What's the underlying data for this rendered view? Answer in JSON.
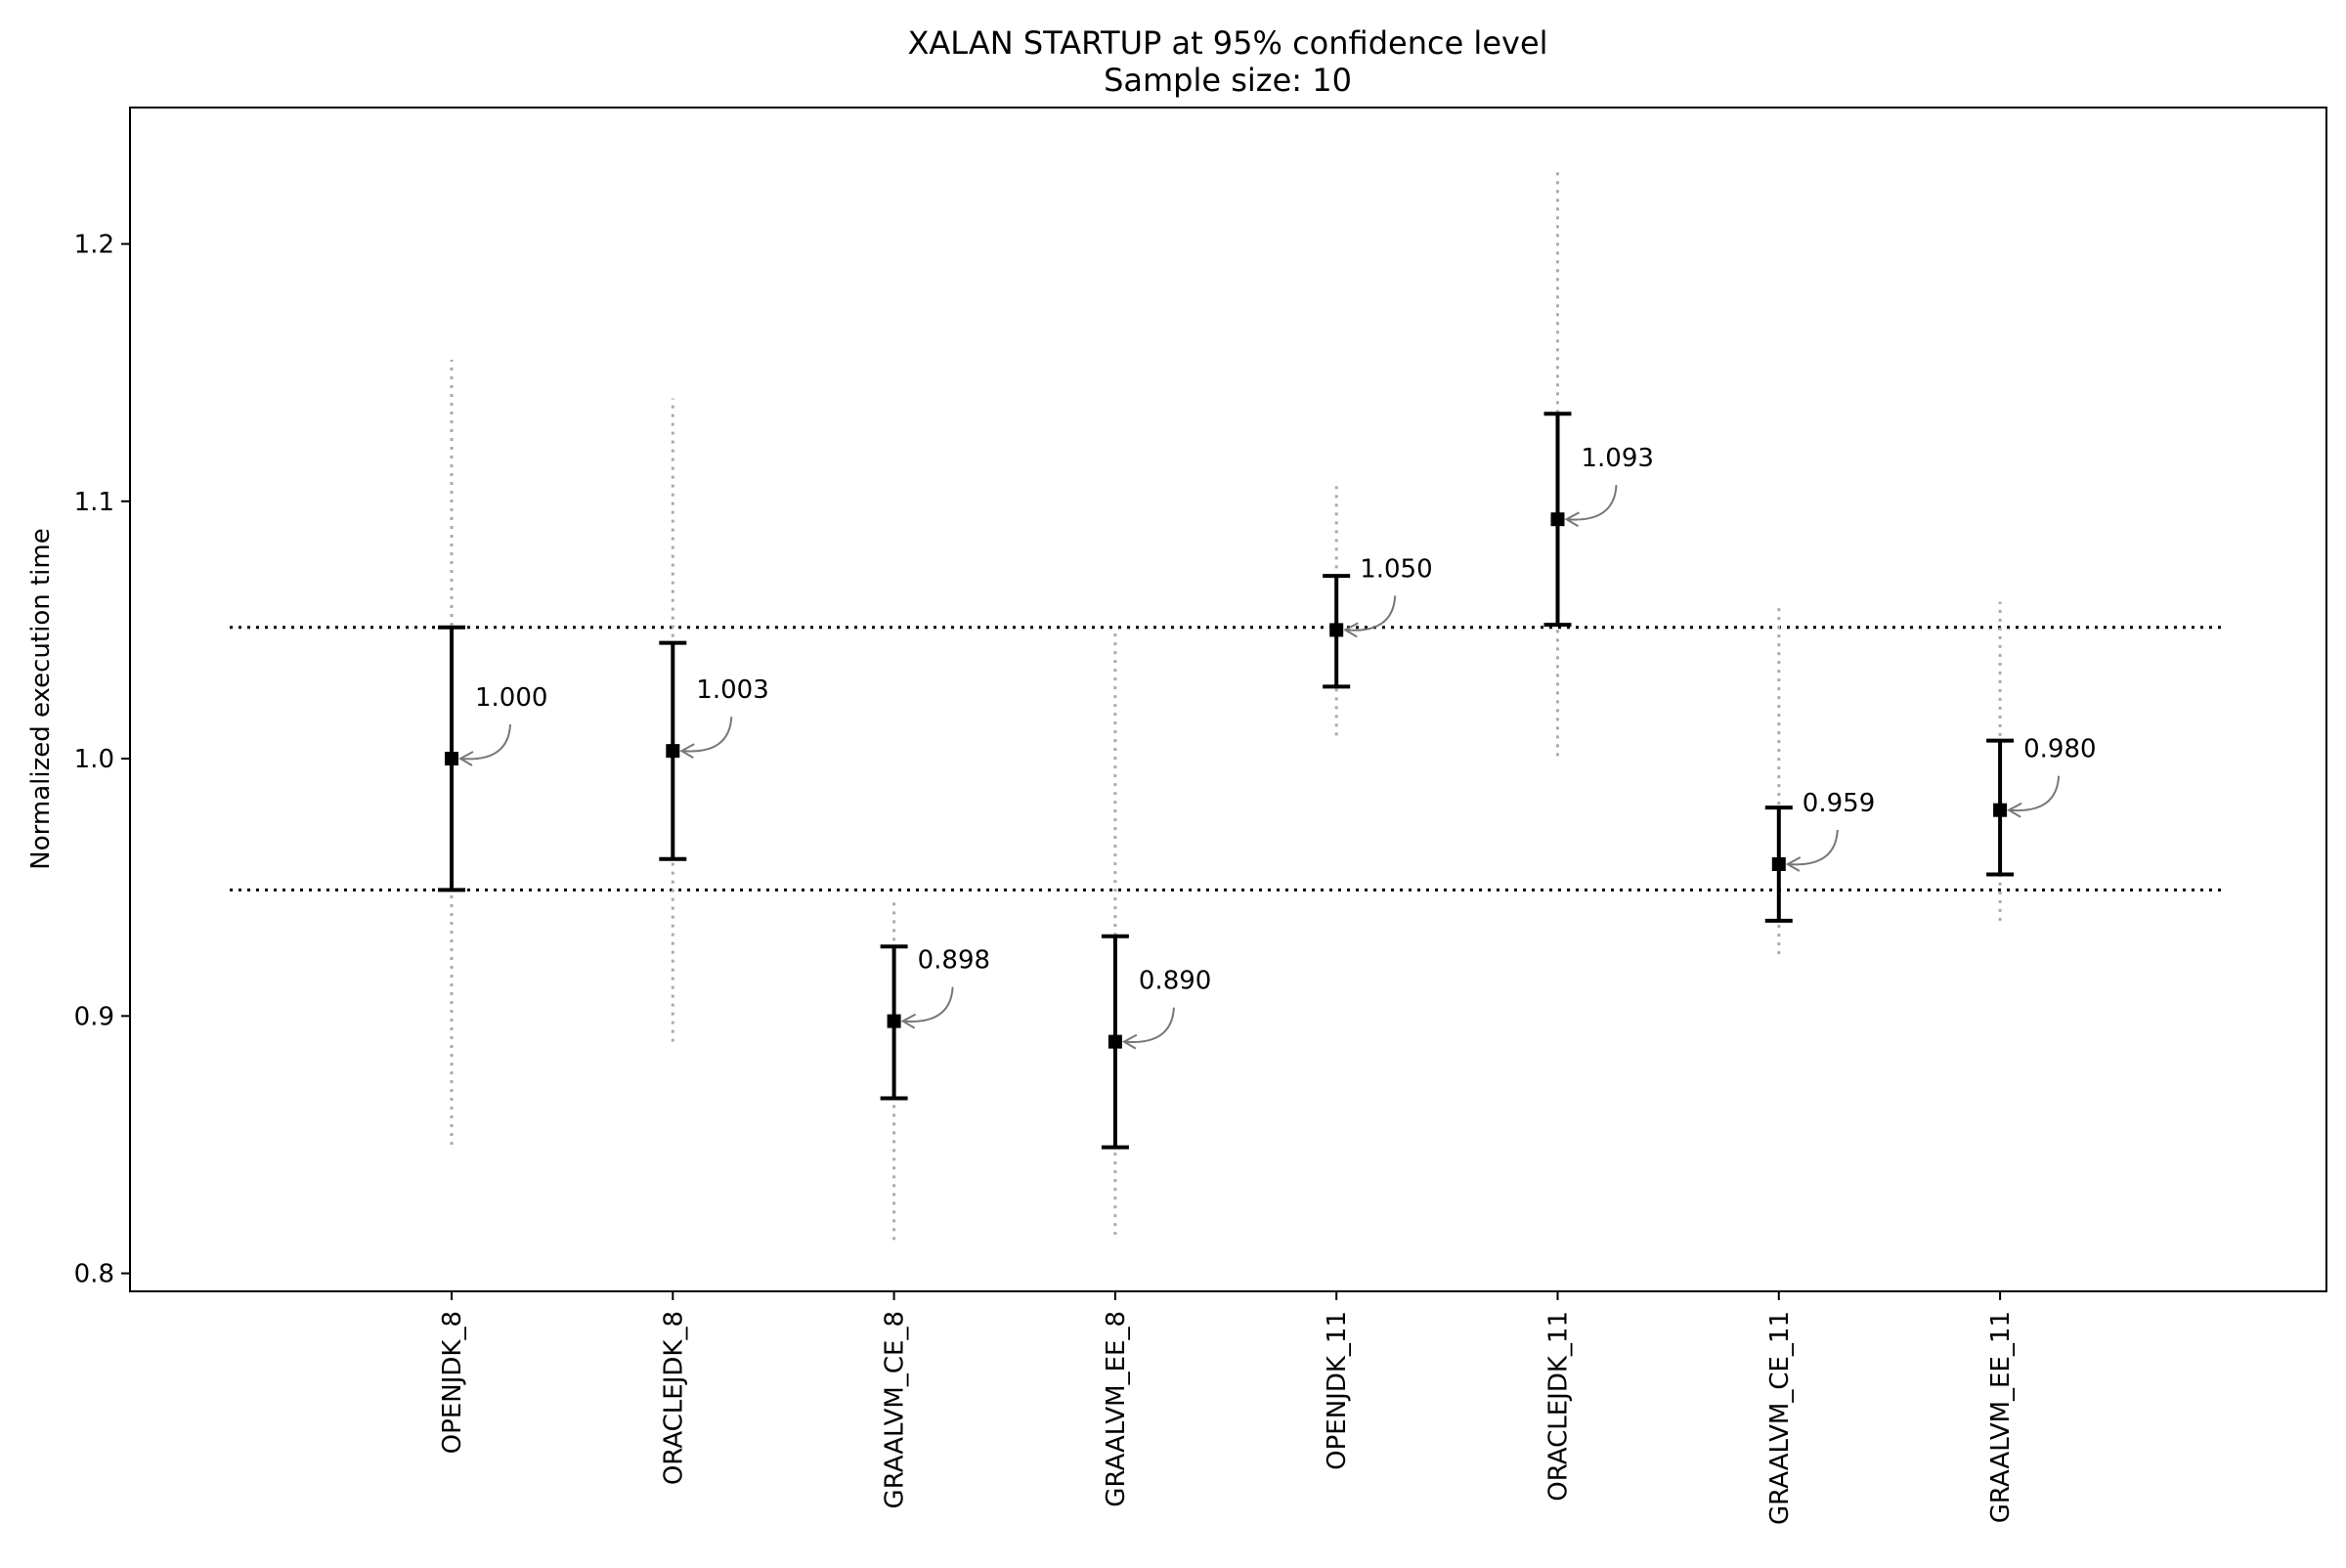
{
  "chart_data": {
    "type": "errorbar",
    "title": "XALAN STARTUP at 95% confidence level",
    "subtitle": "Sample size: 10",
    "xlabel": "",
    "ylabel": "Normalized execution time",
    "ylim": [
      0.793,
      1.253
    ],
    "yticks": [
      0.8,
      0.9,
      1.0,
      1.1,
      1.2
    ],
    "ytick_labels": [
      "0.8",
      "0.9",
      "1.0",
      "1.1",
      "1.2"
    ],
    "grid": false,
    "reference_band": {
      "lower": 0.949,
      "upper": 1.051,
      "style": "dotted"
    },
    "categories": [
      "OPENJDK_8",
      "ORACLEJDK_8",
      "GRAALVM_CE_8",
      "GRAALVM_EE_8",
      "OPENJDK_11",
      "ORACLEJDK_11",
      "GRAALVM_CE_11",
      "GRAALVM_EE_11"
    ],
    "series": [
      {
        "mean": [
          1.0,
          1.003,
          0.898,
          0.89,
          1.05,
          1.093,
          0.959,
          0.98
        ],
        "mean_labels": [
          "1.000",
          "1.003",
          "0.898",
          "0.890",
          "1.050",
          "1.093",
          "0.959",
          "0.980"
        ],
        "ci_low": [
          0.949,
          0.961,
          0.868,
          0.849,
          1.028,
          1.052,
          0.937,
          0.955
        ],
        "ci_high": [
          1.051,
          1.045,
          0.927,
          0.931,
          1.071,
          1.134,
          0.981,
          1.007
        ],
        "range_low": [
          0.85,
          0.89,
          0.813,
          0.815,
          1.009,
          1.001,
          0.924,
          0.937
        ],
        "range_high": [
          1.155,
          1.14,
          0.946,
          1.049,
          1.108,
          1.229,
          1.06,
          1.061
        ]
      }
    ],
    "colors": {
      "ci_bar": "#000000",
      "range_line": "#aaaaaa",
      "reference_line": "#000000",
      "annotation_arrow": "#777777"
    }
  }
}
